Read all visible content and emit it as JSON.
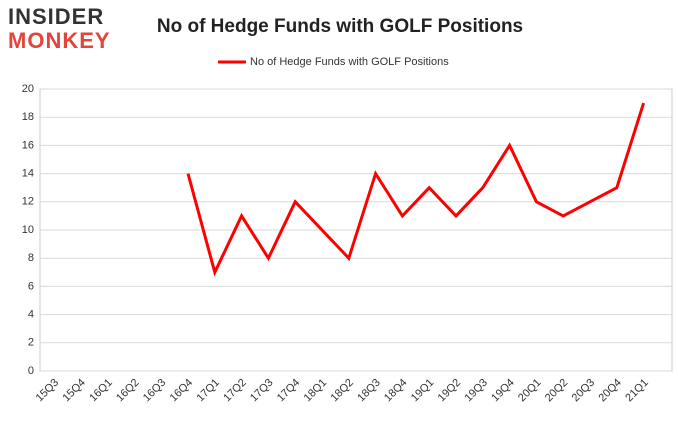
{
  "logo": {
    "line1": "INSIDER",
    "line2": "MONKEY"
  },
  "chart_data": {
    "type": "line",
    "title": "No of Hedge Funds with GOLF Positions",
    "categories": [
      "15Q3",
      "15Q4",
      "16Q1",
      "16Q2",
      "16Q3",
      "16Q4",
      "17Q1",
      "17Q2",
      "17Q3",
      "17Q4",
      "18Q1",
      "18Q2",
      "18Q3",
      "18Q4",
      "19Q1",
      "19Q2",
      "19Q3",
      "19Q4",
      "20Q1",
      "20Q2",
      "20Q3",
      "20Q4",
      "21Q1"
    ],
    "series": [
      {
        "name": "No of Hedge Funds with GOLF Positions",
        "color": "#ff0000",
        "values": [
          null,
          null,
          null,
          null,
          null,
          14,
          7,
          11,
          8,
          12,
          10,
          8,
          14,
          11,
          13,
          11,
          13,
          16,
          12,
          11,
          12,
          13,
          19
        ]
      }
    ],
    "ylim": [
      0,
      20
    ],
    "yticks": [
      0,
      2,
      4,
      6,
      8,
      10,
      12,
      14,
      16,
      18,
      20
    ],
    "grid": true,
    "legend": "top"
  }
}
